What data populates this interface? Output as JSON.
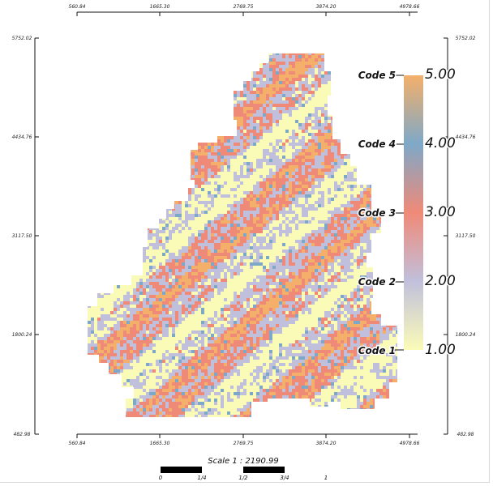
{
  "map": {
    "x_ticks": [
      "560.84",
      "1665.30",
      "2769.75",
      "3874.20",
      "4978.66"
    ],
    "y_ticks": [
      "5752.02",
      "4434.76",
      "3117.50",
      "1800.24",
      "482.98"
    ],
    "x_range": [
      560.84,
      4978.66
    ],
    "y_range": [
      482.98,
      5752.02
    ]
  },
  "legend": {
    "codes": [
      "Code 5",
      "Code 4",
      "Code 3",
      "Code 2",
      "Code 1"
    ],
    "values": [
      "5.00",
      "4.00",
      "3.00",
      "2.00",
      "1.00"
    ],
    "colors": [
      "#f4b06a",
      "#7ea8c8",
      "#f08a78",
      "#c0c0dc",
      "#fbfbb8"
    ]
  },
  "scale": {
    "label": "Scale 1 : 2190.99",
    "ticks": [
      "0",
      "1/4",
      "1/2",
      "3/4",
      "1"
    ]
  }
}
